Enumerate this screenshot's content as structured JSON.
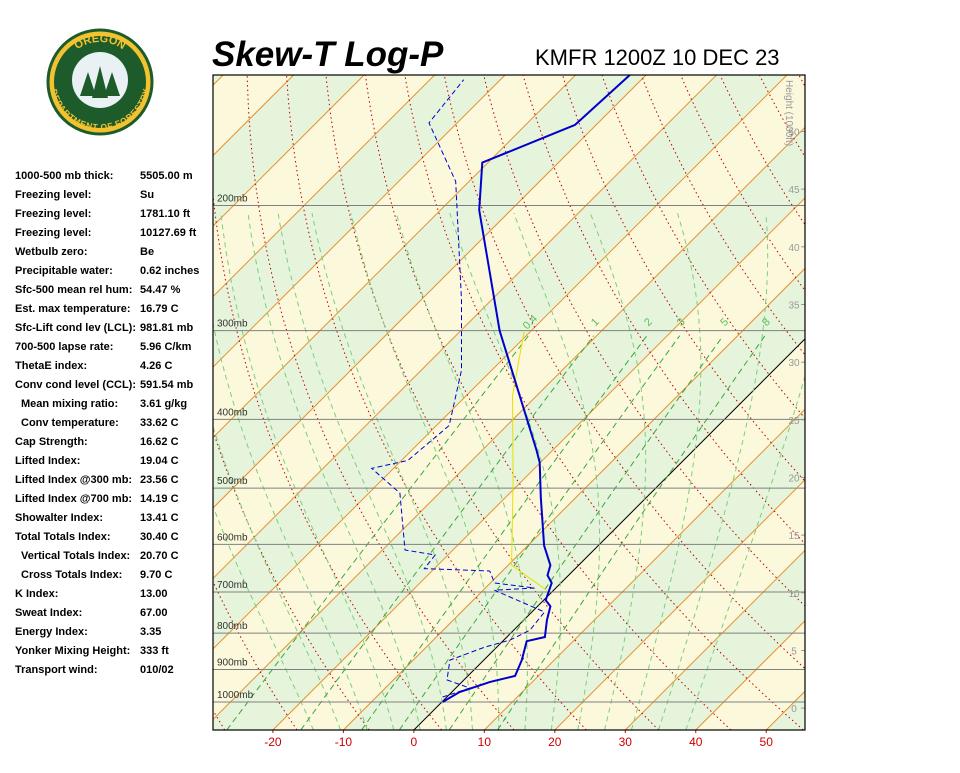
{
  "logo": {
    "top": "OREGON",
    "bottom": "DEPARTMENT OF FORESTRY"
  },
  "indices": [
    {
      "label": "1000-500 mb thick:",
      "value": "5505.00 m"
    },
    {
      "label": "Freezing level:",
      "value": "Su"
    },
    {
      "label": "Freezing level:",
      "value": "1781.10 ft"
    },
    {
      "label": "Freezing level:",
      "value": "10127.69 ft"
    },
    {
      "label": "Wetbulb zero:",
      "value": "Be"
    },
    {
      "label": "Precipitable water:",
      "value": "0.62 inches"
    },
    {
      "label": "Sfc-500 mean rel hum:",
      "value": "54.47 %"
    },
    {
      "label": "Est. max temperature:",
      "value": "16.79 C"
    },
    {
      "label": "Sfc-Lift cond lev (LCL):",
      "value": "981.81 mb"
    },
    {
      "label": "700-500 lapse rate:",
      "value": "5.96 C/km"
    },
    {
      "label": "ThetaE index:",
      "value": "4.26 C"
    },
    {
      "label": "Conv cond level (CCL):",
      "value": "591.54 mb"
    },
    {
      "label": "Mean mixing ratio:",
      "value": "3.61 g/kg"
    },
    {
      "label": "Conv temperature:",
      "value": "33.62 C"
    },
    {
      "label": "Cap Strength:",
      "value": "16.62 C"
    },
    {
      "label": "Lifted Index:",
      "value": "19.04 C"
    },
    {
      "label": "Lifted Index @300 mb:",
      "value": "23.56 C"
    },
    {
      "label": "Lifted Index @700 mb:",
      "value": "14.19 C"
    },
    {
      "label": "Showalter Index:",
      "value": "13.41 C"
    },
    {
      "label": "Total Totals Index:",
      "value": "30.40 C"
    },
    {
      "label": "Vertical Totals Index:",
      "value": "20.70 C"
    },
    {
      "label": "Cross Totals Index:",
      "value": "9.70 C"
    },
    {
      "label": "K Index:",
      "value": "13.00"
    },
    {
      "label": "Sweat Index:",
      "value": "67.00"
    },
    {
      "label": "Energy Index:",
      "value": "3.35"
    },
    {
      "label": "Yonker Mixing Height:",
      "value": "333 ft"
    },
    {
      "label": "Transport wind:",
      "value": "010/02"
    }
  ],
  "chart_data": {
    "type": "skewt",
    "title": "Skew-T Log-P",
    "subtitle": "KMFR 1200Z 10 DEC 23",
    "y2_label": "Height (1000ft)",
    "xlim": [
      -28.5,
      55.5
    ],
    "xticks": [
      -20,
      -10,
      0,
      10,
      20,
      30,
      40,
      50
    ],
    "ylim": [
      1095,
      131
    ],
    "yticks": [
      {
        "value": 200,
        "label": "200mb"
      },
      {
        "value": 300,
        "label": "300mb"
      },
      {
        "value": 400,
        "label": "400mb"
      },
      {
        "value": 500,
        "label": "500mb"
      },
      {
        "value": 600,
        "label": "600mb"
      },
      {
        "value": 700,
        "label": "700mb"
      },
      {
        "value": 800,
        "label": "800mb"
      },
      {
        "value": 900,
        "label": "900mb"
      },
      {
        "value": 1000,
        "label": "1000mb"
      }
    ],
    "y2lim": [
      -1.9,
      54.9
    ],
    "y2ticks": [
      0,
      5,
      10,
      15,
      20,
      25,
      30,
      35,
      40,
      45,
      50
    ],
    "mixing_ratios": [
      0.4,
      1,
      2,
      3,
      5,
      8
    ],
    "temperature": {
      "color": "#0000cc",
      "pressure": [
        1000,
        968,
        937,
        919,
        873,
        821,
        810,
        767,
        733,
        719,
        680,
        663,
        642,
        602,
        515,
        460,
        442,
        300,
        203,
        174,
        154,
        131
      ],
      "values": [
        0.1,
        1.1,
        4.0,
        6.7,
        5.4,
        3.4,
        5.4,
        3.3,
        1.8,
        0.3,
        -1.3,
        -3.0,
        -4.0,
        -7.7,
        -15.0,
        -20.1,
        -22.3,
        -44.5,
        -64.5,
        -70.8,
        -63.0,
        -62.3
      ]
    },
    "dewpoint": {
      "color": "#0000cc",
      "pressure": [
        984,
        956,
        931,
        873,
        837,
        818,
        792,
        747,
        696,
        691,
        680,
        654,
        649,
        621,
        611,
        508,
        469,
        457,
        408,
        341,
        272,
        185,
        153,
        133
      ],
      "values": [
        -0.6,
        2.0,
        -2.4,
        -4.8,
        -1.7,
        0.9,
        2.3,
        1.8,
        -8.4,
        -3.0,
        -9.4,
        -11.8,
        -21.4,
        -21.8,
        -26.8,
        -35.6,
        -43.1,
        -39.1,
        -38.2,
        -44.3,
        -54.2,
        -71.9,
        -84.0,
        -85.2
      ]
    },
    "parcel": {
      "color": "#e8e000",
      "pressure": [
        696,
        642,
        488,
        370,
        300
      ],
      "values": [
        -1.0,
        -9.5,
        -21.3,
        -33.5,
        -41.0
      ]
    }
  }
}
